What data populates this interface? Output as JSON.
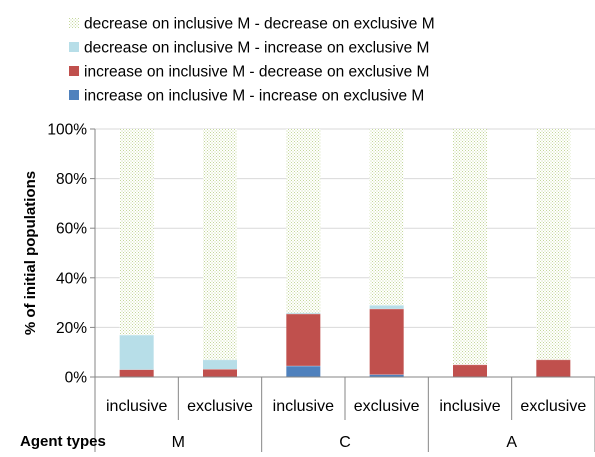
{
  "chart_data": {
    "type": "bar",
    "stacked": true,
    "ylabel": "% of initial populations",
    "xlabel": "",
    "ylim": [
      0,
      100
    ],
    "y_ticks": [
      0,
      20,
      40,
      60,
      80,
      100
    ],
    "y_tick_labels": [
      "0%",
      "20%",
      "40%",
      "60%",
      "80%",
      "100%"
    ],
    "grid": "horizontal",
    "legend_position": "top",
    "group_axis_title": "Agent types",
    "groups": [
      {
        "label": "M",
        "categories": [
          "inclusive",
          "exclusive"
        ]
      },
      {
        "label": "C",
        "categories": [
          "inclusive",
          "exclusive"
        ]
      },
      {
        "label": "A",
        "categories": [
          "inclusive",
          "exclusive"
        ]
      }
    ],
    "series": [
      {
        "name": "increase on inclusive M - increase on exclusive M",
        "color": "#4f81bd",
        "values": [
          0,
          0,
          4.5,
          1,
          0,
          0
        ]
      },
      {
        "name": "increase on inclusive M - decrease on exclusive M",
        "color": "#c0504d",
        "values": [
          3,
          3.2,
          21,
          26.5,
          5,
          7
        ]
      },
      {
        "name": "decrease on inclusive M - increase on exclusive M",
        "color": "#b7dee8",
        "values": [
          14,
          3.8,
          0.5,
          1.5,
          0,
          0
        ]
      },
      {
        "name": "decrease on inclusive M - decrease on exclusive M",
        "color": "#d7e4bd",
        "pattern": "dotted",
        "values": [
          83,
          93,
          74,
          71,
          95,
          93
        ]
      }
    ],
    "legend_order": [
      3,
      2,
      1,
      0
    ]
  }
}
